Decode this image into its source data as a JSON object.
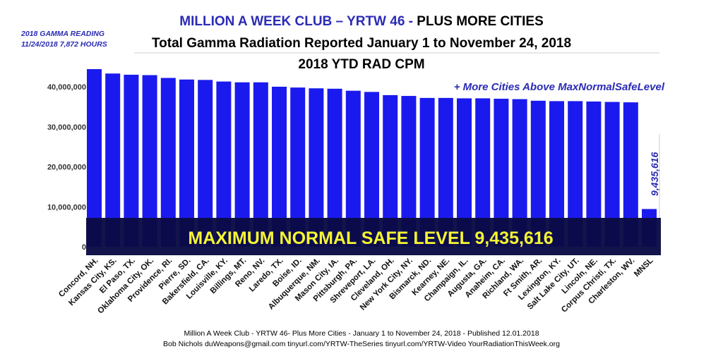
{
  "header": {
    "title_blue": "MILLION A WEEK CLUB – YRTW 46 -",
    "title_black": " PLUS MORE CITIES",
    "subtitle": "Total Gamma Radiation Reported  January 1 to November 24, 2018",
    "chart_title": "2018 YTD RAD CPM"
  },
  "reading": {
    "line1": "2018 GAMMA READING",
    "line2": "11/24/2018  7,872 HOURS"
  },
  "annotation_more": "+ More Cities Above MaxNormalSafeLevel",
  "banner_text": "MAXIMUM NORMAL SAFE LEVEL 9,435,616",
  "mnsl_label": "9,435,616",
  "footer": {
    "line1": "Million A Week Club - YRTW 46- Plus More Cities - January 1 to November 24, 2018  -  Published 12.01.2018",
    "line2": "Bob Nichols  duWeapons@gmail.com tinyurl.com/YRTW-TheSeries  tinyurl.com/YRTW-Video  YourRadiationThisWeek.org"
  },
  "colors": {
    "bar": "#1a1aee",
    "banner_bg": "#0a0a45",
    "banner_text": "#f5f532",
    "accent_text": "#2b2bb5",
    "axis_line": "#cccccc"
  },
  "chart_data": {
    "type": "bar",
    "title": "2018 YTD RAD CPM",
    "xlabel": "",
    "ylabel": "",
    "ylim": [
      0,
      45000000
    ],
    "yticks": [
      {
        "value": 0,
        "label": "0"
      },
      {
        "value": 10000000,
        "label": "10,000,000"
      },
      {
        "value": 20000000,
        "label": "20,000,000"
      },
      {
        "value": 30000000,
        "label": "30,000,000"
      },
      {
        "value": 40000000,
        "label": "40,000,000"
      }
    ],
    "categories": [
      "Concord, NH.",
      "Kansas City, KS.",
      "El Paso, TX.",
      "Oklahoma City, OK.",
      "Providence, RI.",
      "Pierre, SD.",
      "Bakersfield, CA.",
      "Louisville, KY.",
      "Billings, MT.",
      "Reno, NV.",
      "Laredo, TX.",
      "Boise, ID.",
      "Albuquerque, NM.",
      "Mason City, IA.",
      "Pittsburgh, PA.",
      "Shreveport, LA.",
      "Cleveland, OH.",
      "New York City, NY.",
      "Bismarck, ND.",
      "Kearney, NE.",
      "Champaign, IL.",
      "Augusta, GA.",
      "Anaheim, CA.",
      "Richland, WA.",
      "Ft Smith, AR.",
      "Lexington, KY.",
      "Salt Lake City, UT.",
      "Lincoln, NE.",
      "Corpus Christi, TX.",
      "Charleston, WV.",
      "MNSL"
    ],
    "values": [
      44400000,
      43300000,
      43000000,
      42900000,
      42200000,
      41800000,
      41700000,
      41300000,
      41100000,
      41100000,
      40000000,
      39800000,
      39600000,
      39500000,
      39000000,
      38700000,
      37900000,
      37700000,
      37200000,
      37200000,
      37100000,
      37100000,
      37000000,
      36900000,
      36500000,
      36400000,
      36400000,
      36300000,
      36200000,
      36100000,
      9435616
    ],
    "grid": false,
    "legend": "none"
  }
}
